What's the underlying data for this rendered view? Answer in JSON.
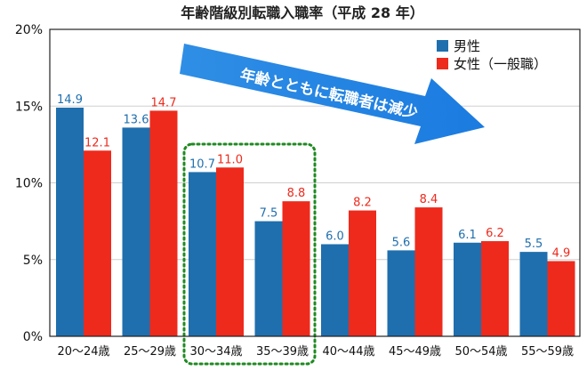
{
  "chart_data": {
    "type": "bar",
    "title": "年齢階級別転職入職率（平成 28 年）",
    "categories": [
      "20〜24歳",
      "25〜29歳",
      "30〜34歳",
      "35〜39歳",
      "40〜44歳",
      "45〜49歳",
      "50〜54歳",
      "55〜59歳"
    ],
    "series": [
      {
        "name": "男性",
        "color": "#1f6fae",
        "values": [
          14.9,
          13.6,
          10.7,
          7.5,
          6.0,
          5.6,
          6.1,
          5.5
        ],
        "labels": [
          "14.9",
          "13.6",
          "10.7",
          "7.5",
          "6.0",
          "5.6",
          "6.1",
          "5.5"
        ]
      },
      {
        "name": "女性（一般職）",
        "color": "#ee2a1c",
        "values": [
          12.1,
          14.7,
          11.0,
          8.8,
          8.2,
          8.4,
          6.2,
          4.9
        ],
        "labels": [
          "12.1",
          "14.7",
          "11.0",
          "8.8",
          "8.2",
          "8.4",
          "6.2",
          "4.9"
        ]
      }
    ],
    "ylim": [
      0,
      20
    ],
    "yticks": [
      0,
      5,
      10,
      15,
      20
    ],
    "ytick_labels": [
      "0%",
      "5%",
      "10%",
      "15%",
      "20%"
    ],
    "grid": true,
    "legend_position": "top-right",
    "annotation": {
      "text": "年齢とともに転職者は減少",
      "color": "#2f8ee5",
      "type": "arrow"
    },
    "highlight": {
      "categories": [
        "30〜34歳",
        "35〜39歳"
      ],
      "color": "#1e8a20",
      "style": "dotted"
    }
  }
}
